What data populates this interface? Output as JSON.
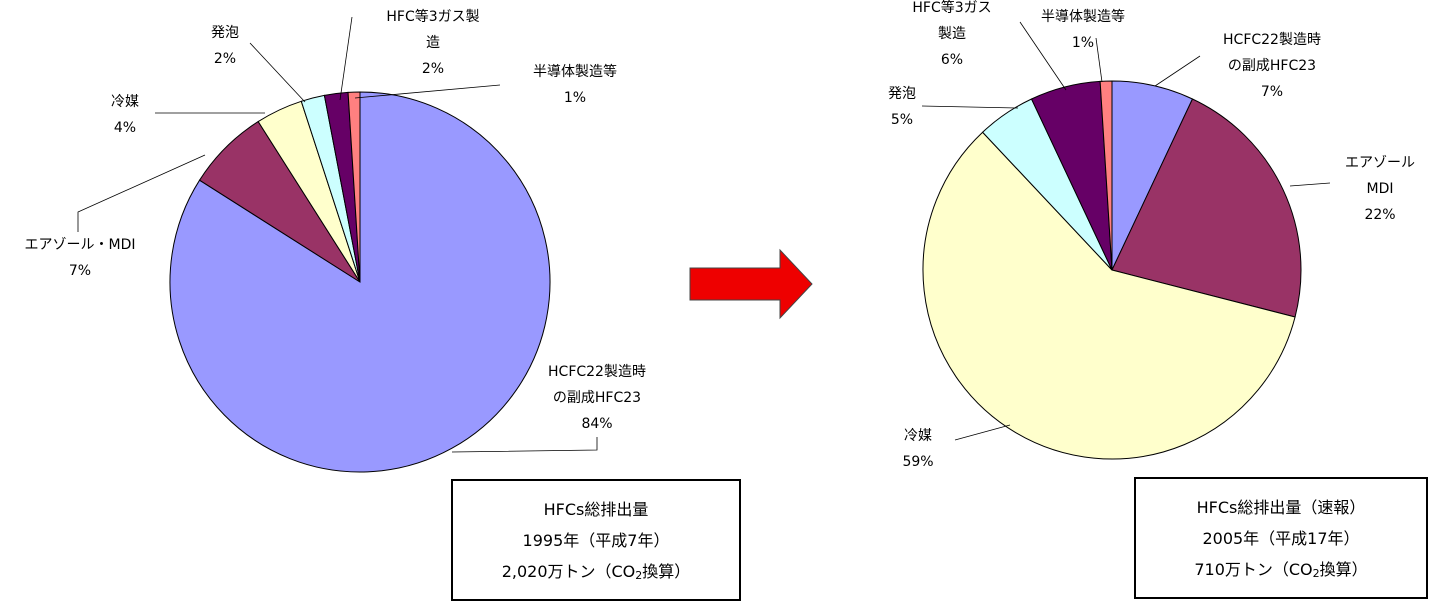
{
  "chart_data": [
    {
      "type": "pie",
      "categories": [
        "HCFC22製造時の副成HFC23",
        "エアゾール・MDI",
        "冷媒",
        "発泡",
        "HFC等3ガス製造",
        "半導体製造等"
      ],
      "values": [
        84,
        7,
        4,
        2,
        2,
        1
      ],
      "value_labels": [
        "84%",
        "7%",
        "4%",
        "2%",
        "2%",
        "1%"
      ],
      "colors": [
        "#9999ff",
        "#993366",
        "#ffffcc",
        "#ccffff",
        "#660066",
        "#ff8080"
      ],
      "annotation": [
        [
          "HFCs総排出量"
        ],
        [
          "1995年（平成7年）"
        ],
        [
          "2,020万トン（CO",
          "2",
          "換算）"
        ]
      ]
    },
    {
      "type": "pie",
      "categories": [
        "HCFC22製造時の副成HFC23",
        "エアゾール MDI",
        "冷媒",
        "発泡",
        "HFC等3ガス製造",
        "半導体製造等"
      ],
      "values": [
        7,
        22,
        59,
        5,
        6,
        1
      ],
      "value_labels": [
        "7%",
        "22%",
        "59%",
        "5%",
        "6%",
        "1%"
      ],
      "colors": [
        "#9999ff",
        "#993366",
        "#ffffcc",
        "#ccffff",
        "#660066",
        "#ff8080"
      ],
      "annotation": [
        [
          "HFCs総排出量（速報）"
        ],
        [
          "2005年（平成17年）"
        ],
        [
          "710万トン（CO",
          "2",
          "換算）"
        ]
      ]
    }
  ]
}
